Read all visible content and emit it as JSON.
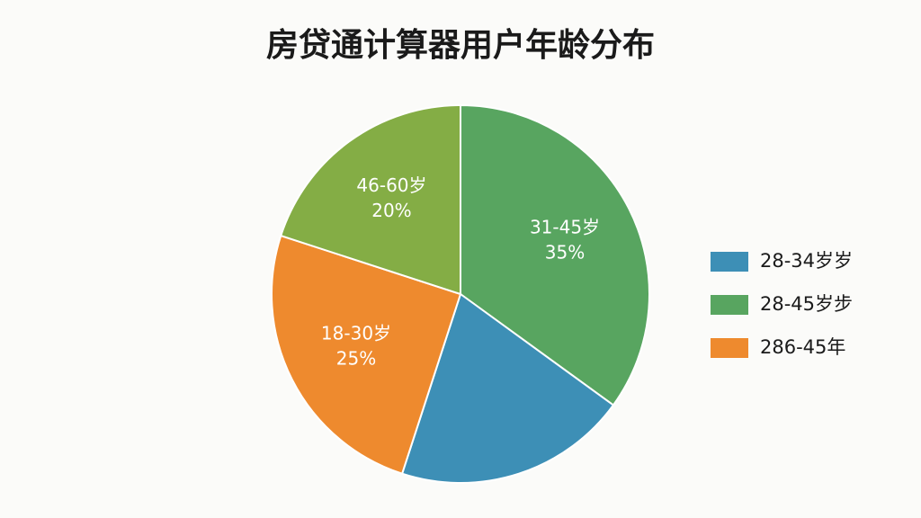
{
  "chart_data": {
    "type": "pie",
    "title": "房贷通计算器用户年龄分布",
    "categories": [
      "31-45岁",
      null,
      "18-30岁",
      "46-60岁"
    ],
    "values": [
      35,
      20,
      25,
      20
    ],
    "value_labels": [
      "35%",
      null,
      "25%",
      "20%"
    ],
    "colors": [
      "#58a560",
      "#3d8fb6",
      "#ee8a2e",
      "#84ad45"
    ],
    "legend": [
      {
        "name": "28-34岁岁",
        "color": "#3d8fb6"
      },
      {
        "name": "28-45岁步",
        "color": "#58a560"
      },
      {
        "name": "286-45年",
        "color": "#ee8a2e"
      }
    ]
  }
}
